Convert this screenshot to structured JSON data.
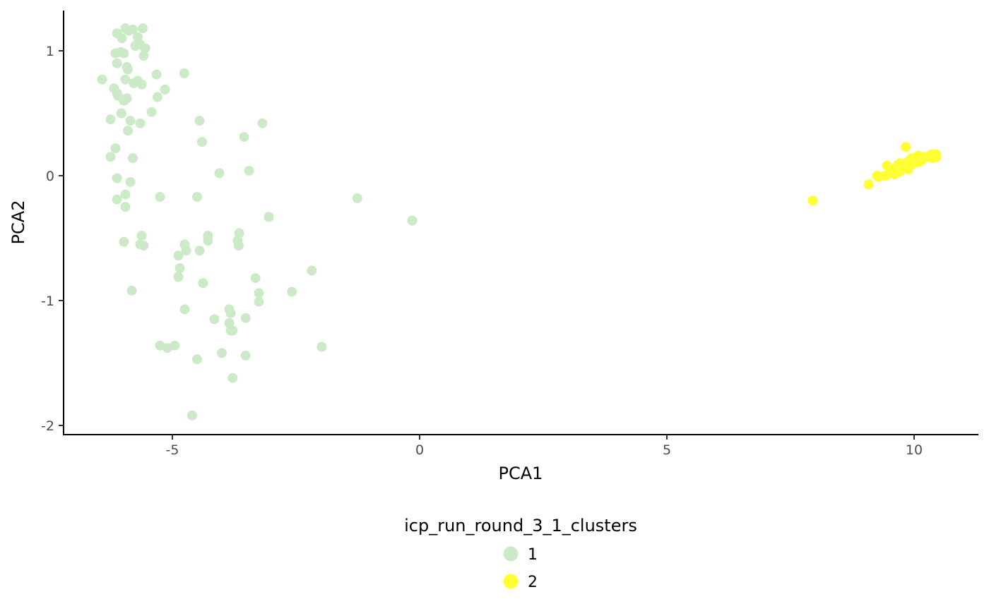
{
  "chart_data": {
    "type": "scatter",
    "xlabel": "PCA1",
    "ylabel": "PCA2",
    "xlim": [
      -7.2,
      11.3
    ],
    "ylim": [
      -2.07,
      1.32
    ],
    "x_ticks": [
      -5,
      0,
      5,
      10
    ],
    "x_tick_labels": [
      "-5",
      "0",
      "5",
      "10"
    ],
    "y_ticks": [
      1,
      0,
      -1,
      -2
    ],
    "y_tick_labels": [
      "1",
      "0",
      "-1",
      "-2"
    ],
    "grid": false,
    "legend": {
      "title": "icp_run_round_3_1_clusters",
      "position": "bottom",
      "entries": [
        {
          "label": "1",
          "color": "#cdeac8"
        },
        {
          "label": "2",
          "color": "#ffff33"
        }
      ]
    },
    "series": [
      {
        "label": "1",
        "color": "#cdeac8",
        "points": [
          [
            -6.12,
            1.14
          ],
          [
            -5.95,
            1.18
          ],
          [
            -5.8,
            1.17
          ],
          [
            -5.6,
            1.18
          ],
          [
            -5.88,
            1.16
          ],
          [
            -5.7,
            1.11
          ],
          [
            -6.02,
            1.1
          ],
          [
            -6.15,
            0.98
          ],
          [
            -6.05,
            0.99
          ],
          [
            -5.98,
            0.98
          ],
          [
            -5.75,
            1.04
          ],
          [
            -5.65,
            1.05
          ],
          [
            -5.55,
            1.02
          ],
          [
            -5.58,
            0.96
          ],
          [
            -6.12,
            0.9
          ],
          [
            -5.92,
            0.87
          ],
          [
            -5.9,
            0.85
          ],
          [
            -5.95,
            0.77
          ],
          [
            -5.78,
            0.74
          ],
          [
            -5.7,
            0.76
          ],
          [
            -5.62,
            0.73
          ],
          [
            -5.32,
            0.81
          ],
          [
            -4.76,
            0.82
          ],
          [
            -6.42,
            0.77
          ],
          [
            -6.18,
            0.7
          ],
          [
            -6.1,
            0.64
          ],
          [
            -6.12,
            0.66
          ],
          [
            -5.98,
            0.6
          ],
          [
            -5.92,
            0.62
          ],
          [
            -5.3,
            0.63
          ],
          [
            -5.15,
            0.69
          ],
          [
            -6.03,
            0.5
          ],
          [
            -6.25,
            0.45
          ],
          [
            -5.85,
            0.44
          ],
          [
            -5.65,
            0.42
          ],
          [
            -5.42,
            0.51
          ],
          [
            -5.9,
            0.36
          ],
          [
            -4.45,
            0.44
          ],
          [
            -3.18,
            0.42
          ],
          [
            -3.55,
            0.31
          ],
          [
            -4.4,
            0.27
          ],
          [
            -6.15,
            0.22
          ],
          [
            -6.25,
            0.15
          ],
          [
            -5.8,
            0.14
          ],
          [
            -6.12,
            -0.02
          ],
          [
            -5.85,
            -0.05
          ],
          [
            -4.05,
            0.02
          ],
          [
            -3.45,
            0.04
          ],
          [
            -5.95,
            -0.15
          ],
          [
            -6.12,
            -0.19
          ],
          [
            -5.95,
            -0.25
          ],
          [
            -5.25,
            -0.17
          ],
          [
            -4.5,
            -0.17
          ],
          [
            -1.26,
            -0.18
          ],
          [
            -0.15,
            -0.36
          ],
          [
            -3.05,
            -0.33
          ],
          [
            -5.98,
            -0.53
          ],
          [
            -5.62,
            -0.48
          ],
          [
            -5.65,
            -0.55
          ],
          [
            -5.58,
            -0.56
          ],
          [
            -4.75,
            -0.55
          ],
          [
            -4.72,
            -0.6
          ],
          [
            -4.88,
            -0.64
          ],
          [
            -4.45,
            -0.6
          ],
          [
            -4.28,
            -0.48
          ],
          [
            -4.28,
            -0.52
          ],
          [
            -3.65,
            -0.46
          ],
          [
            -3.68,
            -0.52
          ],
          [
            -3.66,
            -0.56
          ],
          [
            -4.85,
            -0.74
          ],
          [
            -4.88,
            -0.81
          ],
          [
            -4.38,
            -0.86
          ],
          [
            -3.32,
            -0.82
          ],
          [
            -3.25,
            -0.94
          ],
          [
            -3.25,
            -1.01
          ],
          [
            -2.58,
            -0.93
          ],
          [
            -2.18,
            -0.76
          ],
          [
            -5.82,
            -0.92
          ],
          [
            -4.75,
            -1.07
          ],
          [
            -3.85,
            -1.07
          ],
          [
            -3.82,
            -1.1
          ],
          [
            -3.85,
            -1.18
          ],
          [
            -3.82,
            -1.24
          ],
          [
            -3.78,
            -1.24
          ],
          [
            -4.15,
            -1.15
          ],
          [
            -3.52,
            -1.14
          ],
          [
            -5.25,
            -1.36
          ],
          [
            -5.1,
            -1.38
          ],
          [
            -4.95,
            -1.36
          ],
          [
            -4.5,
            -1.47
          ],
          [
            -4.0,
            -1.42
          ],
          [
            -3.52,
            -1.44
          ],
          [
            -3.78,
            -1.62
          ],
          [
            -1.98,
            -1.37
          ],
          [
            -4.6,
            -1.92
          ]
        ]
      },
      {
        "label": "2",
        "color": "#ffff33",
        "points": [
          [
            7.95,
            -0.2
          ],
          [
            9.08,
            -0.07
          ],
          [
            9.25,
            0.0
          ],
          [
            9.28,
            -0.01
          ],
          [
            9.42,
            0.0
          ],
          [
            9.45,
            0.08
          ],
          [
            9.5,
            0.02
          ],
          [
            9.55,
            0.05
          ],
          [
            9.6,
            0.01
          ],
          [
            9.62,
            0.06
          ],
          [
            9.7,
            0.03
          ],
          [
            9.72,
            0.1
          ],
          [
            9.75,
            0.06
          ],
          [
            9.8,
            0.08
          ],
          [
            9.83,
            0.23
          ],
          [
            9.85,
            0.1
          ],
          [
            9.9,
            0.12
          ],
          [
            9.92,
            0.08
          ],
          [
            9.95,
            0.14
          ],
          [
            10.0,
            0.1
          ],
          [
            10.02,
            0.12
          ],
          [
            10.05,
            0.13
          ],
          [
            10.1,
            0.11
          ],
          [
            10.12,
            0.14
          ],
          [
            10.15,
            0.12
          ],
          [
            10.2,
            0.15
          ],
          [
            10.3,
            0.15
          ],
          [
            10.35,
            0.17
          ],
          [
            10.38,
            0.14
          ],
          [
            10.42,
            0.16
          ],
          [
            10.45,
            0.17
          ],
          [
            10.45,
            0.15
          ],
          [
            9.68,
            0.09
          ],
          [
            9.88,
            0.05
          ],
          [
            10.08,
            0.16
          ]
        ]
      }
    ]
  }
}
